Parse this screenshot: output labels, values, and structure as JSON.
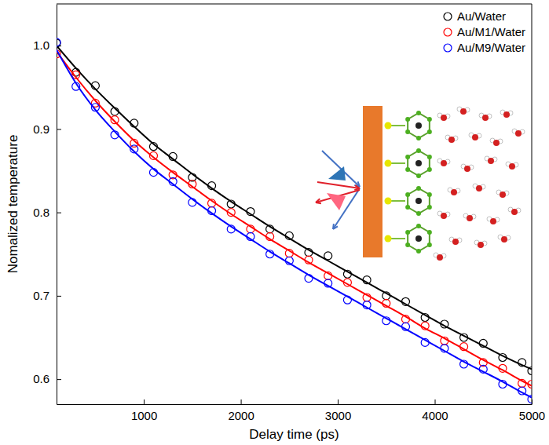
{
  "chart_data": {
    "type": "scatter",
    "x_label": "Delay time (ps)",
    "y_label": "Nomalized temperature",
    "x": [
      100,
      300,
      500,
      700,
      900,
      1100,
      1300,
      1500,
      1700,
      1900,
      2100,
      2300,
      2500,
      2700,
      2900,
      3100,
      3300,
      3500,
      3700,
      3900,
      4100,
      4300,
      4500,
      4700,
      4900,
      5000
    ],
    "series": [
      {
        "name": "Au/Water",
        "color": "#000000",
        "marker": "circle",
        "line_style": "solid",
        "values": [
          1.003,
          0.968,
          0.952,
          0.921,
          0.907,
          0.879,
          0.867,
          0.842,
          0.832,
          0.81,
          0.801,
          0.78,
          0.772,
          0.752,
          0.748,
          0.726,
          0.719,
          0.7,
          0.693,
          0.674,
          0.666,
          0.65,
          0.643,
          0.626,
          0.62,
          0.61
        ],
        "fit": [
          1.0,
          0.973,
          0.948,
          0.925,
          0.903,
          0.882,
          0.864,
          0.846,
          0.829,
          0.813,
          0.798,
          0.783,
          0.769,
          0.755,
          0.742,
          0.729,
          0.716,
          0.703,
          0.69,
          0.677,
          0.664,
          0.652,
          0.64,
          0.628,
          0.617,
          0.612
        ]
      },
      {
        "name": "Au/M1/Water",
        "color": "#ff0000",
        "marker": "circle",
        "line_style": "solid",
        "values": [
          0.99,
          0.965,
          0.931,
          0.911,
          0.883,
          0.868,
          0.845,
          0.834,
          0.811,
          0.8,
          0.78,
          0.771,
          0.751,
          0.743,
          0.724,
          0.716,
          0.698,
          0.691,
          0.672,
          0.664,
          0.646,
          0.639,
          0.62,
          0.613,
          0.595,
          0.594
        ],
        "fit": [
          0.993,
          0.962,
          0.934,
          0.909,
          0.886,
          0.866,
          0.848,
          0.831,
          0.814,
          0.798,
          0.783,
          0.768,
          0.754,
          0.74,
          0.727,
          0.714,
          0.701,
          0.688,
          0.675,
          0.661,
          0.649,
          0.636,
          0.623,
          0.611,
          0.598,
          0.592
        ]
      },
      {
        "name": "Au/M9/Water",
        "color": "#0000ff",
        "marker": "circle",
        "line_style": "solid",
        "values": [
          1.004,
          0.951,
          0.926,
          0.893,
          0.876,
          0.848,
          0.837,
          0.812,
          0.802,
          0.78,
          0.771,
          0.75,
          0.742,
          0.721,
          0.715,
          0.695,
          0.689,
          0.67,
          0.663,
          0.644,
          0.637,
          0.618,
          0.612,
          0.594,
          0.586,
          0.576
        ],
        "fit": [
          0.995,
          0.955,
          0.923,
          0.897,
          0.873,
          0.852,
          0.834,
          0.816,
          0.799,
          0.783,
          0.768,
          0.753,
          0.739,
          0.725,
          0.712,
          0.699,
          0.686,
          0.673,
          0.66,
          0.647,
          0.634,
          0.621,
          0.609,
          0.597,
          0.584,
          0.578
        ]
      }
    ],
    "xlim": [
      100,
      5000
    ],
    "xticks": [
      1000,
      2000,
      3000,
      4000,
      5000
    ],
    "ylim": [
      0.57,
      1.05
    ],
    "yticks": [
      0.6,
      0.7,
      0.8,
      0.9,
      {
        "value": 1,
        "label": "1.0"
      }
    ],
    "grid": false,
    "legend": "upper right"
  }
}
